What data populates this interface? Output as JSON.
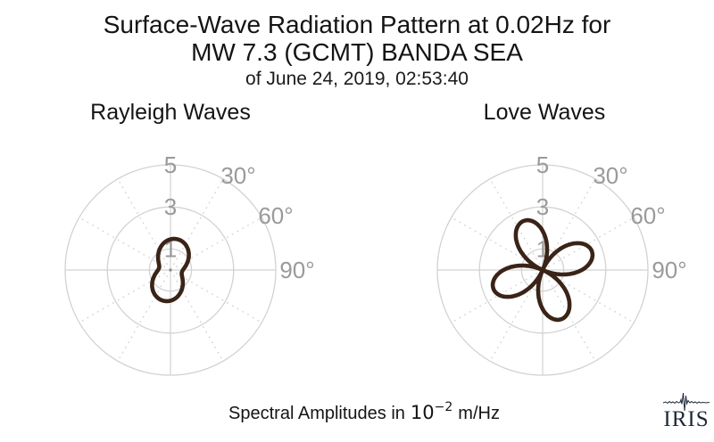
{
  "figure": {
    "title_line1": "Surface-Wave Radiation Pattern at 0.02Hz for",
    "title_line2": "MW 7.3 (GCMT) BANDA SEA",
    "title_line3": "of June 24, 2019, 02:53:40",
    "caption_prefix": "Spectral Amplitudes in",
    "caption_math_base": "10",
    "caption_math_exponent": "−2",
    "caption_suffix": "m/Hz",
    "logo_text": "IRIS"
  },
  "colors": {
    "background": "#ffffff",
    "text": "#141414",
    "grid": "#d2d2d2",
    "tick_labels": "#9a9a9a",
    "center_dot": "#8f8f8f",
    "pattern_stroke": "#3a2417",
    "logo": "#1f2837"
  },
  "chart_data": [
    {
      "type": "polar-line",
      "title": "Rayleigh Waves",
      "r_ticks": [
        1,
        3,
        5
      ],
      "r_tick_labels": [
        "1",
        "3",
        "5"
      ],
      "r_max": 5,
      "theta_ticks_deg": [
        30,
        60,
        90
      ],
      "theta_tick_labels": [
        "30°",
        "60°",
        "90°"
      ],
      "theta_grid_step_deg": 30,
      "amplitude_units": "10⁻² m/Hz",
      "pattern": {
        "model": "peanut",
        "formula": "r(θ) = base + amp·cos²(θ − phase)",
        "base": 0.55,
        "amp": 0.95,
        "phase_deg": 12,
        "max_amplitude": 1.5,
        "min_amplitude": 0.55,
        "lobe_azimuths_deg": [
          12,
          192
        ]
      },
      "samples": {
        "azimuth_deg_step": 10,
        "r": [
          1.46,
          1.5,
          1.48,
          1.41,
          1.29,
          1.14,
          0.98,
          0.82,
          0.68,
          0.59,
          0.55,
          0.57,
          0.64,
          0.76,
          0.91,
          1.07,
          1.23,
          1.37,
          1.46,
          1.5,
          1.48,
          1.41,
          1.29,
          1.14,
          0.98,
          0.82,
          0.68,
          0.59,
          0.55,
          0.57,
          0.64,
          0.76,
          0.91,
          1.07,
          1.23,
          1.37
        ]
      }
    },
    {
      "type": "polar-line",
      "title": "Love Waves",
      "r_ticks": [
        1,
        3,
        5
      ],
      "r_tick_labels": [
        "1",
        "3",
        "5"
      ],
      "r_max": 5,
      "theta_ticks_deg": [
        30,
        60,
        90
      ],
      "theta_tick_labels": [
        "30°",
        "60°",
        "90°"
      ],
      "theta_grid_step_deg": 30,
      "amplitude_units": "10⁻² m/Hz",
      "pattern": {
        "model": "four-lobe",
        "formula": "r(θ) = amp·|cos(2(θ − phase))|",
        "amp": 2.5,
        "phase_deg": -21,
        "max_amplitude": 2.5,
        "min_amplitude": 0,
        "lobe_azimuths_deg": [
          -21,
          69,
          159,
          249
        ]
      },
      "samples": {
        "azimuth_deg_step": 10,
        "r": [
          1.86,
          1.17,
          0.35,
          0.52,
          1.32,
          1.97,
          2.38,
          2.5,
          2.32,
          1.86,
          1.17,
          0.35,
          0.52,
          1.32,
          1.97,
          2.38,
          2.5,
          2.32,
          1.86,
          1.17,
          0.35,
          0.52,
          1.32,
          1.97,
          2.38,
          2.5,
          2.32,
          1.86,
          1.17,
          0.35,
          0.52,
          1.32,
          1.97,
          2.38,
          2.5,
          2.32
        ]
      }
    }
  ]
}
